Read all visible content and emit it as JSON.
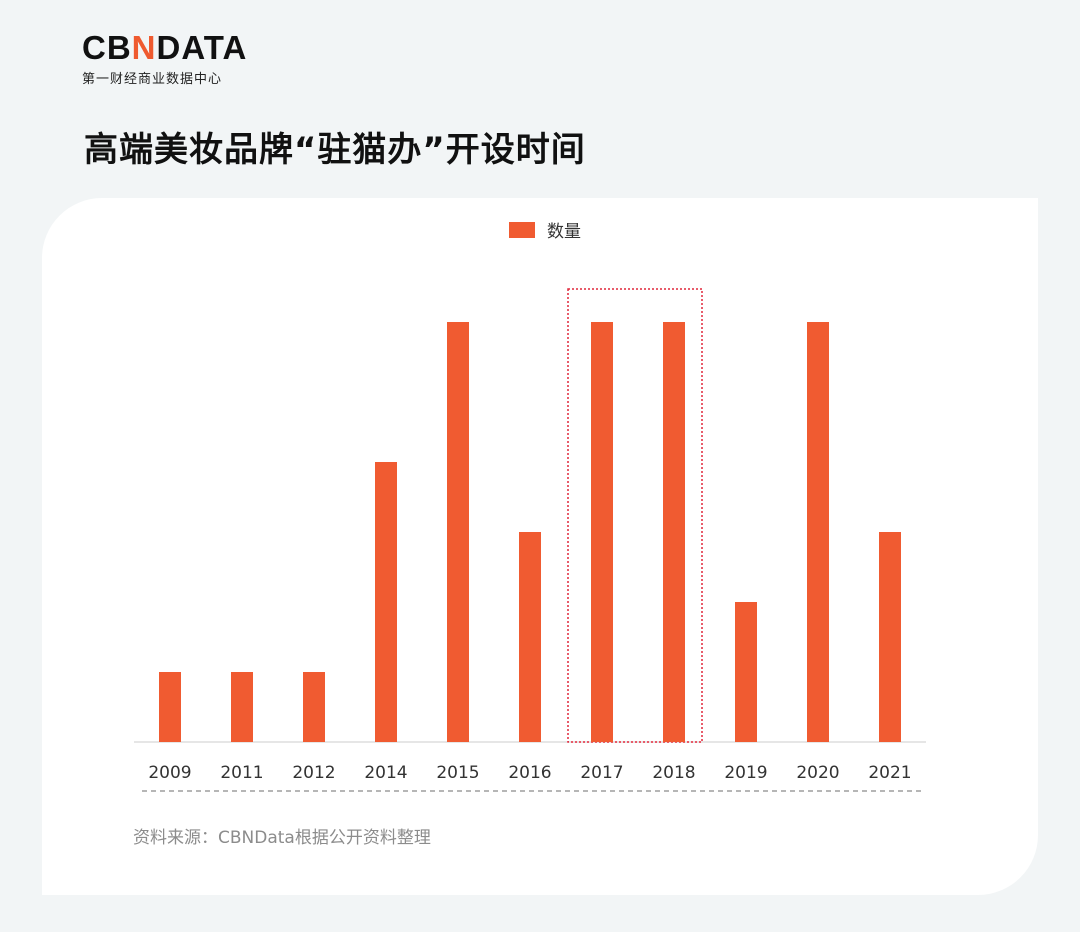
{
  "logo": {
    "mark_pre": "CB",
    "mark_accent": "N",
    "mark_post": "DATA",
    "subtitle": "第一财经商业数据中心"
  },
  "title": "高端美妆品牌“驻猫办”开设时间",
  "legend": {
    "label": "数量"
  },
  "source": "资料来源：CBNData根据公开资料整理",
  "colors": {
    "bar": "#f05b31",
    "highlight_box": "#e0263a",
    "axis": "#cccccc"
  },
  "chart_data": {
    "type": "bar",
    "title": "高端美妆品牌“驻猫办”开设时间",
    "xlabel": "",
    "ylabel": "",
    "categories": [
      "2009",
      "2011",
      "2012",
      "2014",
      "2015",
      "2016",
      "2017",
      "2018",
      "2019",
      "2020",
      "2021"
    ],
    "series": [
      {
        "name": "数量",
        "values": [
          1,
          1,
          1,
          4,
          6,
          3,
          6,
          6,
          2,
          6,
          3
        ]
      }
    ],
    "ylim": [
      0,
      6
    ],
    "grid": false,
    "legend_position": "top-center",
    "highlighted_categories": [
      "2017",
      "2018"
    ]
  }
}
